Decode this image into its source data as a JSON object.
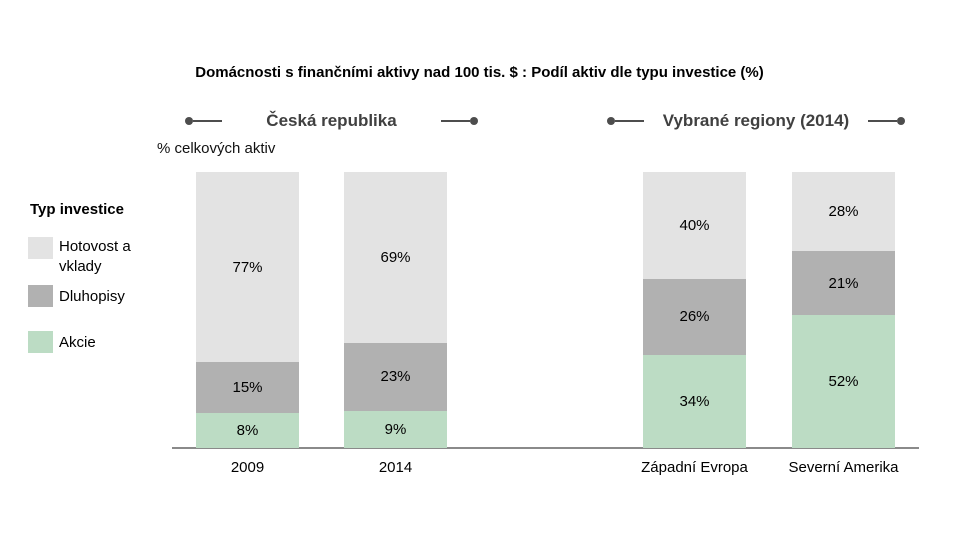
{
  "title": "Domácnosti s finančními aktivy nad 100 tis. $ : Podíl aktiv dle typu investice (%)",
  "sections": [
    {
      "label": "Česká republika"
    },
    {
      "label": "Vybrané regiony (2014)"
    }
  ],
  "y_axis_label": "% celkových aktiv",
  "legend": {
    "title": "Typ investice",
    "items": [
      {
        "label": "Hotovost a vklady",
        "color": "#e3e3e3"
      },
      {
        "label": "Dluhopisy",
        "color": "#b1b1b1"
      },
      {
        "label": "Akcie",
        "color": "#bcdcc4"
      }
    ]
  },
  "chart_data": {
    "type": "bar",
    "stacked": true,
    "unit": "%",
    "title": "Domácnosti s finančními aktivy nad 100 tis. $ : Podíl aktiv dle typu investice (%)",
    "ylabel": "% celkových aktiv",
    "ylim": [
      0,
      100
    ],
    "grid": false,
    "legend_position": "left",
    "groups": [
      {
        "label": "Česká republika",
        "categories": [
          "2009",
          "2014"
        ]
      },
      {
        "label": "Vybrané regiony (2014)",
        "categories": [
          "Západní Evropa",
          "Severní Amerika"
        ]
      }
    ],
    "categories": [
      "2009",
      "2014",
      "Západní Evropa",
      "Severní Amerika"
    ],
    "series": [
      {
        "name": "Hotovost a vklady",
        "color": "#e3e3e3",
        "values": [
          77,
          69,
          40,
          28
        ]
      },
      {
        "name": "Dluhopisy",
        "color": "#b1b1b1",
        "values": [
          15,
          23,
          26,
          21
        ]
      },
      {
        "name": "Akcie",
        "color": "#bcdcc4",
        "values": [
          8,
          9,
          34,
          52
        ]
      }
    ]
  }
}
